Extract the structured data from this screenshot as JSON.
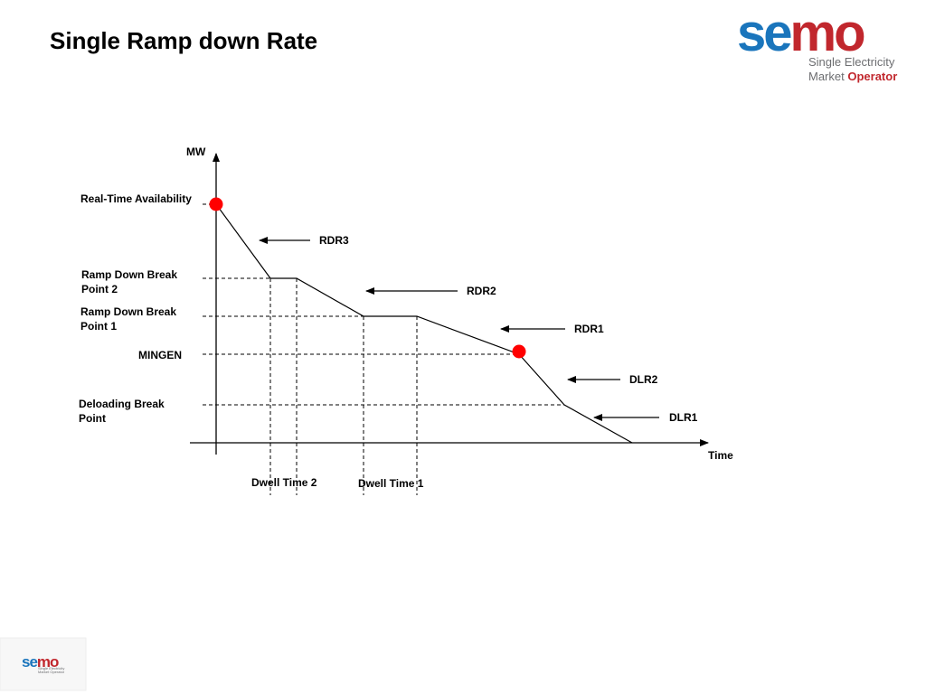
{
  "title": "Single Ramp down Rate",
  "logo": {
    "wordmark": "semo",
    "line1": "Single Electricity",
    "line2_plain": "Market",
    "line2_strong": "Operator",
    "colors": {
      "blue": "#1a75bc",
      "red": "#c1272d",
      "grey": "#6d6e71"
    }
  },
  "footer_logo": {
    "wordmark": "semo",
    "line1": "Single Electricity",
    "line2": "Market Operator"
  },
  "diagram": {
    "axes": {
      "y_label": "MW",
      "x_label": "Time"
    },
    "y_levels": [
      {
        "key": "rta",
        "text": [
          "Real-Time Availability"
        ]
      },
      {
        "key": "rdbp2",
        "text": [
          "Ramp Down Break",
          "Point 2"
        ]
      },
      {
        "key": "rdbp1",
        "text": [
          "Ramp Down Break",
          "Point 1"
        ]
      },
      {
        "key": "mingen",
        "text": [
          "MINGEN"
        ]
      },
      {
        "key": "dbp",
        "text": [
          "Deloading Break",
          "Point"
        ]
      }
    ],
    "rates": [
      "RDR3",
      "RDR2",
      "RDR1",
      "DLR2",
      "DLR1"
    ],
    "dwell_times": [
      "Dwell Time 2",
      "Dwell Time 1"
    ],
    "marker_color": "#ff0000"
  }
}
